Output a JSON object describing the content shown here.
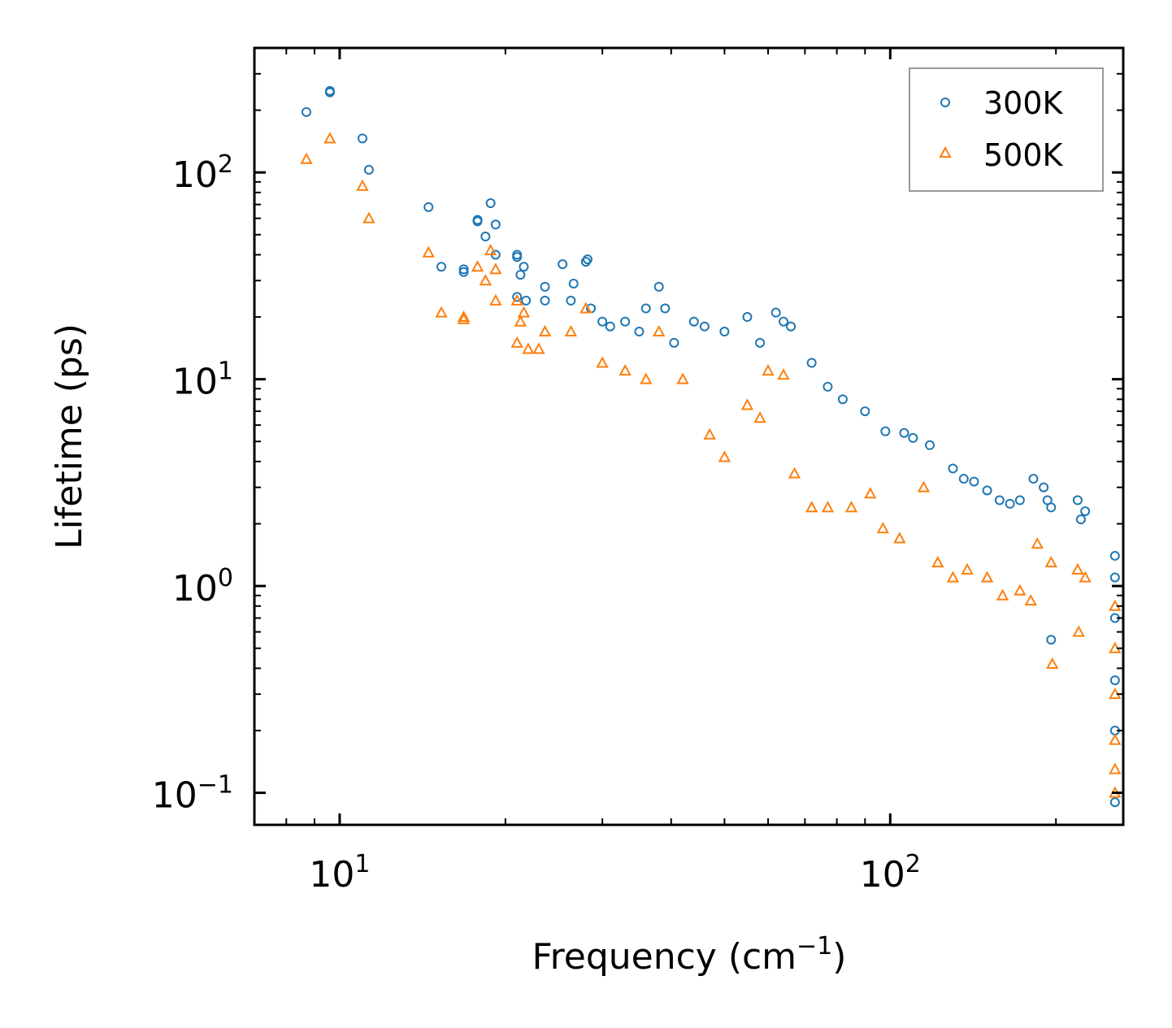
{
  "chart_data": {
    "type": "scatter",
    "title": "",
    "xlabel": "Frequency (cm",
    "xlabel_sup": "−1",
    "xlabel_suffix": ")",
    "ylabel": "Lifetime (ps)",
    "xscale": "log",
    "yscale": "log",
    "xlim": [
      7.0,
      265
    ],
    "ylim": [
      0.07,
      400
    ],
    "x_ticks": [
      {
        "value": 10,
        "base": "10",
        "exp": "1"
      },
      {
        "value": 100,
        "base": "10",
        "exp": "2"
      }
    ],
    "y_ticks": [
      {
        "value": 0.1,
        "base": "10",
        "exp": "−1"
      },
      {
        "value": 1,
        "base": "10",
        "exp": "0"
      },
      {
        "value": 10,
        "base": "10",
        "exp": "1"
      },
      {
        "value": 100,
        "base": "10",
        "exp": "2"
      }
    ],
    "legend_position": "top-right",
    "series": [
      {
        "name": "300K",
        "marker": "circle",
        "color": "#1f77b4",
        "points": [
          [
            8.7,
            196
          ],
          [
            9.6,
            248
          ],
          [
            9.6,
            244
          ],
          [
            11.0,
            146
          ],
          [
            11.3,
            103
          ],
          [
            14.5,
            68
          ],
          [
            15.3,
            35
          ],
          [
            16.8,
            33
          ],
          [
            16.8,
            34
          ],
          [
            17.8,
            58
          ],
          [
            17.8,
            59
          ],
          [
            18.4,
            49
          ],
          [
            18.8,
            71
          ],
          [
            19.2,
            56
          ],
          [
            19.2,
            40
          ],
          [
            21.0,
            40
          ],
          [
            21.0,
            39
          ],
          [
            21.0,
            25
          ],
          [
            21.3,
            32
          ],
          [
            21.6,
            35
          ],
          [
            21.8,
            24
          ],
          [
            23.6,
            28
          ],
          [
            23.6,
            24
          ],
          [
            25.4,
            36
          ],
          [
            26.3,
            24
          ],
          [
            26.6,
            29
          ],
          [
            28.0,
            37
          ],
          [
            28.2,
            38
          ],
          [
            28.6,
            22
          ],
          [
            30.0,
            19
          ],
          [
            31.0,
            18
          ],
          [
            33.0,
            19
          ],
          [
            35.0,
            17
          ],
          [
            36.0,
            22
          ],
          [
            38.0,
            28
          ],
          [
            39.0,
            22
          ],
          [
            40.5,
            15
          ],
          [
            44.0,
            19
          ],
          [
            46.0,
            18
          ],
          [
            50.0,
            17
          ],
          [
            55.0,
            20
          ],
          [
            58.0,
            15
          ],
          [
            62.0,
            21
          ],
          [
            64.0,
            19
          ],
          [
            66.0,
            18
          ],
          [
            72.0,
            12
          ],
          [
            77.0,
            9.2
          ],
          [
            82.0,
            8.0
          ],
          [
            90.0,
            7.0
          ],
          [
            98.0,
            5.6
          ],
          [
            106.0,
            5.5
          ],
          [
            110.0,
            5.2
          ],
          [
            118.0,
            4.8
          ],
          [
            130.0,
            3.7
          ],
          [
            136.0,
            3.3
          ],
          [
            142.0,
            3.2
          ],
          [
            150.0,
            2.9
          ],
          [
            158.0,
            2.6
          ],
          [
            165.0,
            2.5
          ],
          [
            172.0,
            2.6
          ],
          [
            182.0,
            3.3
          ],
          [
            190.0,
            3.0
          ],
          [
            193.0,
            2.6
          ],
          [
            196.0,
            2.4
          ],
          [
            196.0,
            0.55
          ],
          [
            219.0,
            2.6
          ],
          [
            222.0,
            2.1
          ],
          [
            226.0,
            2.3
          ],
          [
            256.0,
            1.4
          ],
          [
            256.0,
            1.1
          ],
          [
            256.0,
            0.7
          ],
          [
            256.0,
            0.35
          ],
          [
            256.0,
            0.2
          ],
          [
            256.0,
            0.09
          ]
        ]
      },
      {
        "name": "500K",
        "marker": "triangle",
        "color": "#ff7f0e",
        "points": [
          [
            8.7,
            116
          ],
          [
            9.6,
            146
          ],
          [
            11.0,
            86
          ],
          [
            11.3,
            60
          ],
          [
            14.5,
            41
          ],
          [
            15.3,
            21
          ],
          [
            16.8,
            20
          ],
          [
            16.8,
            19.5
          ],
          [
            17.8,
            35
          ],
          [
            18.4,
            30
          ],
          [
            18.8,
            42
          ],
          [
            19.2,
            34
          ],
          [
            19.2,
            24
          ],
          [
            21.0,
            24
          ],
          [
            21.3,
            19
          ],
          [
            21.6,
            21
          ],
          [
            21.0,
            15
          ],
          [
            22.0,
            14
          ],
          [
            23.0,
            14
          ],
          [
            23.6,
            17
          ],
          [
            26.3,
            17
          ],
          [
            28.0,
            22
          ],
          [
            30.0,
            12
          ],
          [
            33.0,
            11
          ],
          [
            36.0,
            10
          ],
          [
            38.0,
            17
          ],
          [
            42.0,
            10
          ],
          [
            47.0,
            5.4
          ],
          [
            50.0,
            4.2
          ],
          [
            55.0,
            7.5
          ],
          [
            58.0,
            6.5
          ],
          [
            60.0,
            11
          ],
          [
            64.0,
            10.5
          ],
          [
            67.0,
            3.5
          ],
          [
            72.0,
            2.4
          ],
          [
            77.0,
            2.4
          ],
          [
            85.0,
            2.4
          ],
          [
            92.0,
            2.8
          ],
          [
            97.0,
            1.9
          ],
          [
            104.0,
            1.7
          ],
          [
            115.0,
            3.0
          ],
          [
            122.0,
            1.3
          ],
          [
            130.0,
            1.1
          ],
          [
            138.0,
            1.2
          ],
          [
            150.0,
            1.1
          ],
          [
            160.0,
            0.9
          ],
          [
            172.0,
            0.95
          ],
          [
            180.0,
            0.85
          ],
          [
            185.0,
            1.6
          ],
          [
            196.0,
            1.3
          ],
          [
            197.0,
            0.42
          ],
          [
            219.0,
            1.2
          ],
          [
            220.0,
            0.6
          ],
          [
            226.0,
            1.1
          ],
          [
            256.0,
            0.8
          ],
          [
            256.0,
            0.5
          ],
          [
            256.0,
            0.3
          ],
          [
            256.0,
            0.18
          ],
          [
            256.0,
            0.13
          ],
          [
            256.0,
            0.1
          ]
        ]
      }
    ]
  }
}
